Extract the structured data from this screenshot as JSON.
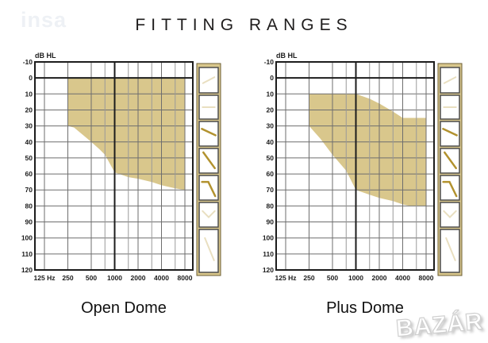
{
  "page": {
    "title": "FITTING RANGES",
    "watermark_topleft": "insa",
    "watermark_bottomright": "BAZÁR"
  },
  "colors": {
    "region_fill": "#d9c78c",
    "sidebar_bg": "#d9c78c",
    "sidebar_border": "#6b5d33",
    "icon_box_fill": "#ffffff",
    "icon_box_border": "#4d4d4d",
    "icon_emphasis": "#b2922f",
    "icon_faint": "#e9dfc0",
    "grid_major": "#6e6e6e",
    "grid_minor": "#9a9a9a",
    "grid_bold": "#1c1c1c",
    "axis_text": "#1c1c1c"
  },
  "sidebar_icons": [
    {
      "name": "rising-audiogram-icon",
      "emphasis": false,
      "y": 23,
      "h": 32,
      "points": [
        [
          20,
          62
        ],
        [
          80,
          38
        ]
      ]
    },
    {
      "name": "flat-audiogram-icon",
      "emphasis": false,
      "y": 58,
      "h": 30,
      "points": [
        [
          18,
          50
        ],
        [
          82,
          50
        ]
      ]
    },
    {
      "name": "gentle-slope-audiogram-icon",
      "emphasis": true,
      "y": 91,
      "h": 31,
      "points": [
        [
          14,
          30
        ],
        [
          86,
          56
        ]
      ]
    },
    {
      "name": "steep-slope-audiogram-icon",
      "emphasis": true,
      "y": 125,
      "h": 31,
      "points": [
        [
          22,
          16
        ],
        [
          82,
          80
        ]
      ]
    },
    {
      "name": "ski-slope-audiogram-icon",
      "emphasis": true,
      "y": 159,
      "h": 31,
      "points": [
        [
          15,
          26
        ],
        [
          48,
          26
        ],
        [
          84,
          84
        ]
      ]
    },
    {
      "name": "cookie-bite-audiogram-icon",
      "emphasis": false,
      "y": 193,
      "h": 31,
      "points": [
        [
          18,
          35
        ],
        [
          50,
          60
        ],
        [
          82,
          35
        ]
      ]
    },
    {
      "name": "corner-audiogram-icon",
      "emphasis": false,
      "y": 227,
      "h": 54,
      "points": [
        [
          30,
          20
        ],
        [
          78,
          72
        ]
      ]
    }
  ],
  "chart_data": [
    {
      "type": "area",
      "title": "Open Dome",
      "ylabel": "dB HL",
      "ylim": [
        -10,
        120
      ],
      "yticks": [
        -10,
        0,
        10,
        20,
        30,
        40,
        50,
        60,
        70,
        80,
        90,
        100,
        110,
        120
      ],
      "xtick_freqs": [
        125,
        250,
        500,
        1000,
        2000,
        4000,
        8000
      ],
      "xtick_labels": [
        "125 Hz",
        "250",
        "500",
        "1000",
        "2000",
        "4000",
        "8000"
      ],
      "minor_freqs": [
        750,
        1500,
        3000,
        6000
      ],
      "bold_freq": 1000,
      "bold_db": 0,
      "region": {
        "upper_db": [
          [
            250,
            0
          ],
          [
            8000,
            0
          ]
        ],
        "lower_db": [
          [
            250,
            30
          ],
          [
            300,
            31
          ],
          [
            400,
            36
          ],
          [
            500,
            40
          ],
          [
            650,
            45
          ],
          [
            750,
            48
          ],
          [
            1000,
            59
          ],
          [
            1500,
            62
          ],
          [
            2000,
            63
          ],
          [
            3000,
            65
          ],
          [
            4000,
            67
          ],
          [
            6000,
            69
          ],
          [
            8000,
            70
          ]
        ]
      }
    },
    {
      "type": "area",
      "title": "Plus Dome",
      "ylabel": "dB HL",
      "ylim": [
        -10,
        120
      ],
      "yticks": [
        -10,
        0,
        10,
        20,
        30,
        40,
        50,
        60,
        70,
        80,
        90,
        100,
        110,
        120
      ],
      "xtick_freqs": [
        125,
        250,
        500,
        1000,
        2000,
        4000,
        8000
      ],
      "xtick_labels": [
        "125 Hz",
        "250",
        "500",
        "1000",
        "2000",
        "4000",
        "8000"
      ],
      "minor_freqs": [
        750,
        1500,
        3000,
        6000
      ],
      "bold_freq": 1000,
      "bold_db": 0,
      "region": {
        "upper_db": [
          [
            250,
            10
          ],
          [
            1000,
            10
          ],
          [
            1500,
            13
          ],
          [
            2000,
            16
          ],
          [
            3000,
            21
          ],
          [
            4000,
            25
          ],
          [
            8000,
            25
          ]
        ],
        "lower_db": [
          [
            250,
            30
          ],
          [
            350,
            38
          ],
          [
            500,
            48
          ],
          [
            750,
            58
          ],
          [
            1000,
            70
          ],
          [
            1500,
            73
          ],
          [
            2000,
            75
          ],
          [
            3000,
            77
          ],
          [
            4000,
            79
          ],
          [
            5000,
            80
          ],
          [
            8000,
            80
          ]
        ]
      }
    }
  ]
}
